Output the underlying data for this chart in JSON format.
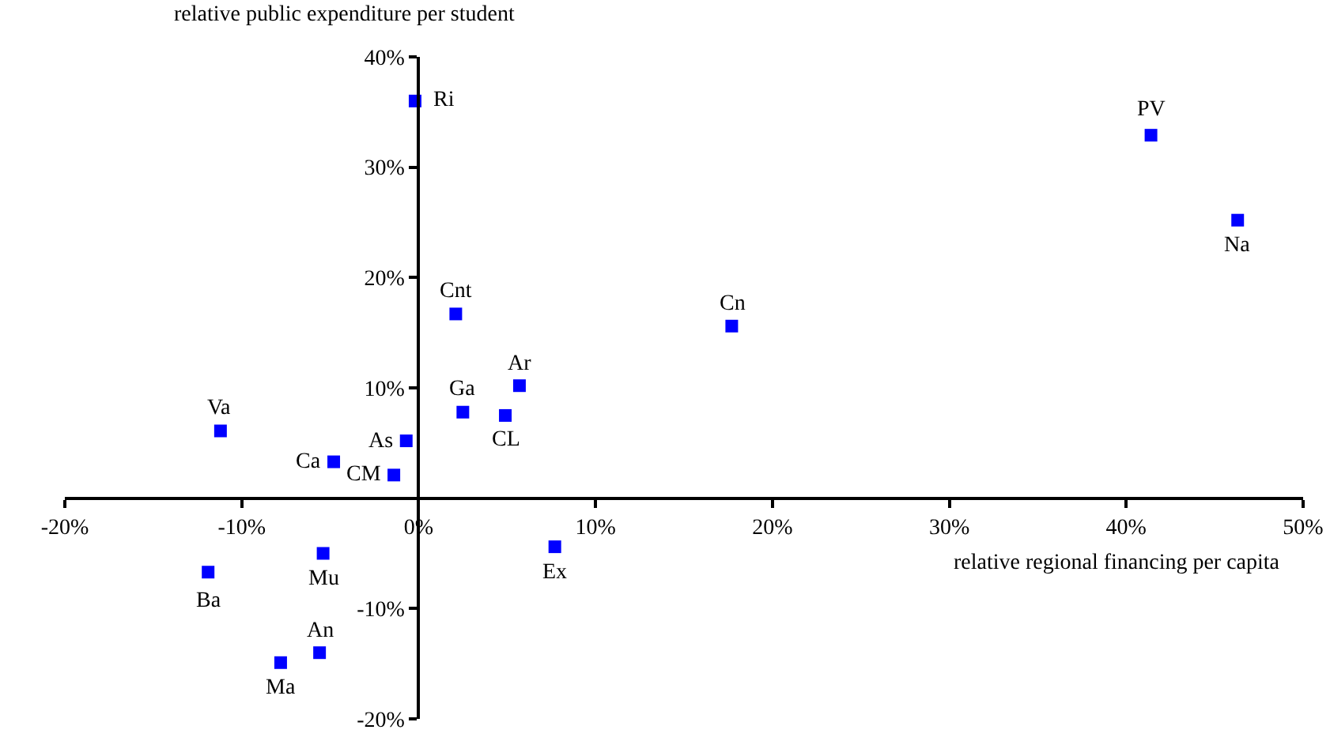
{
  "chart_data": {
    "type": "scatter",
    "xlabel": "relative regional financing per capita",
    "ylabel": "relative public expenditure per student",
    "x": [
      -0.2,
      41.4,
      46.3,
      17.7,
      2.1,
      5.7,
      2.5,
      4.9,
      -11.2,
      -0.7,
      -4.8,
      -1.4,
      -5.4,
      -11.9,
      7.7,
      -5.6,
      -7.8
    ],
    "series": [
      {
        "color": "#0000ff",
        "values": [
          36.0,
          32.9,
          25.2,
          15.6,
          16.7,
          10.2,
          7.8,
          7.5,
          6.1,
          5.2,
          3.3,
          2.1,
          -5.0,
          -6.7,
          -4.4,
          -14.0,
          -14.9
        ]
      }
    ],
    "annotations": [
      {
        "text": "Ri",
        "x": -0.2,
        "y": 36.0
      },
      {
        "text": "PV",
        "x": 41.4,
        "y": 32.9
      },
      {
        "text": "Na",
        "x": 46.3,
        "y": 25.2
      },
      {
        "text": "Cn",
        "x": 17.7,
        "y": 15.6
      },
      {
        "text": "Cnt",
        "x": 2.1,
        "y": 16.7
      },
      {
        "text": "Ar",
        "x": 5.7,
        "y": 10.2
      },
      {
        "text": "Ga",
        "x": 2.5,
        "y": 7.8
      },
      {
        "text": "CL",
        "x": 4.9,
        "y": 7.5
      },
      {
        "text": "Va",
        "x": -11.2,
        "y": 6.1
      },
      {
        "text": "As",
        "x": -0.7,
        "y": 5.2
      },
      {
        "text": "Ca",
        "x": -4.8,
        "y": 3.3
      },
      {
        "text": "CM",
        "x": -1.4,
        "y": 2.1
      },
      {
        "text": "Mu",
        "x": -5.4,
        "y": -5.0
      },
      {
        "text": "Ba",
        "x": -11.9,
        "y": -6.7
      },
      {
        "text": "Ex",
        "x": 7.7,
        "y": -4.4
      },
      {
        "text": "An",
        "x": -5.6,
        "y": -14.0
      },
      {
        "text": "Ma",
        "x": -7.8,
        "y": -14.9
      }
    ],
    "xlim": [
      -20,
      50
    ],
    "ylim": [
      -20,
      40
    ],
    "xticks": [
      {
        "value": -20,
        "label": "-20%"
      },
      {
        "value": -10,
        "label": "-10%"
      },
      {
        "value": 0,
        "label": "0%"
      },
      {
        "value": 10,
        "label": "10%"
      },
      {
        "value": 20,
        "label": "20%"
      },
      {
        "value": 30,
        "label": "30%"
      },
      {
        "value": 40,
        "label": "40%"
      },
      {
        "value": 50,
        "label": "50%"
      }
    ],
    "yticks": [
      {
        "value": -20,
        "label": "-20%"
      },
      {
        "value": -10,
        "label": "-10%"
      },
      {
        "value": 0,
        "label": null
      },
      {
        "value": 10,
        "label": "10%"
      },
      {
        "value": 20,
        "label": "20%"
      },
      {
        "value": 30,
        "label": "30%"
      },
      {
        "value": 40,
        "label": "40%"
      }
    ],
    "grid": false,
    "marker": "square"
  }
}
